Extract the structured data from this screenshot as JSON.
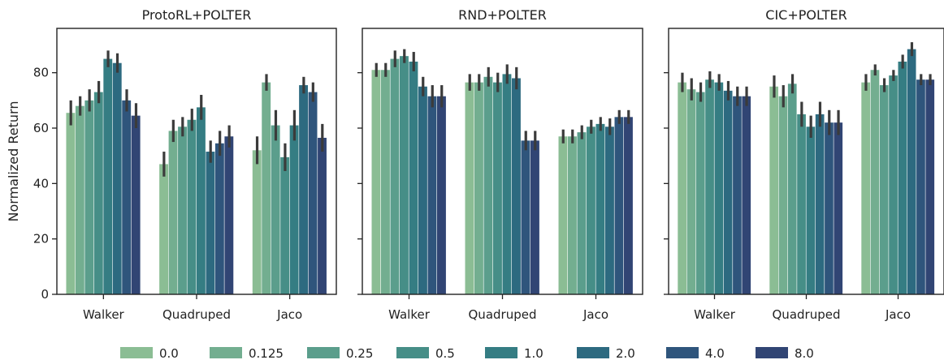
{
  "chart_data": [
    {
      "type": "bar",
      "title": "ProtoRL+POLTER",
      "ylabel": "Normalized Return",
      "xlabel": "",
      "ylim": [
        0,
        96
      ],
      "yticks": [
        0,
        20,
        40,
        60,
        80
      ],
      "grid": false,
      "categories": [
        "Walker",
        "Quadruped",
        "Jaco"
      ],
      "series": [
        {
          "name": "0.0",
          "values": [
            65.5,
            47,
            52
          ],
          "errors": [
            4.5,
            4.5,
            5
          ]
        },
        {
          "name": "0.125",
          "values": [
            68,
            59,
            76.5
          ],
          "errors": [
            3.5,
            4,
            3
          ]
        },
        {
          "name": "0.25",
          "values": [
            70,
            60.5,
            61
          ],
          "errors": [
            4,
            3.5,
            5.5
          ]
        },
        {
          "name": "0.5",
          "values": [
            73,
            63,
            49.5
          ],
          "errors": [
            4,
            4,
            5
          ]
        },
        {
          "name": "1.0",
          "values": [
            85,
            67.5,
            61
          ],
          "errors": [
            3,
            4.5,
            5.5
          ]
        },
        {
          "name": "2.0",
          "values": [
            83.5,
            51.5,
            75.5
          ],
          "errors": [
            3.5,
            4,
            3
          ]
        },
        {
          "name": "4.0",
          "values": [
            70,
            54.5,
            73
          ],
          "errors": [
            4,
            4.5,
            3.5
          ]
        },
        {
          "name": "8.0",
          "values": [
            64.5,
            57,
            56.5
          ],
          "errors": [
            4.5,
            4,
            5
          ]
        }
      ]
    },
    {
      "type": "bar",
      "title": "RND+POLTER",
      "ylabel": "",
      "xlabel": "",
      "ylim": [
        0,
        96
      ],
      "yticks": [
        0,
        20,
        40,
        60,
        80
      ],
      "grid": false,
      "categories": [
        "Walker",
        "Quadruped",
        "Jaco"
      ],
      "series": [
        {
          "name": "0.0",
          "values": [
            81,
            76.5,
            57
          ],
          "errors": [
            2.5,
            3,
            2.5
          ]
        },
        {
          "name": "0.125",
          "values": [
            81,
            76.5,
            57
          ],
          "errors": [
            2.5,
            3,
            2.5
          ]
        },
        {
          "name": "0.25",
          "values": [
            85,
            78.5,
            58.5
          ],
          "errors": [
            3,
            3.5,
            2.5
          ]
        },
        {
          "name": "0.5",
          "values": [
            86,
            76.5,
            60.5
          ],
          "errors": [
            2.5,
            3.5,
            2.5
          ]
        },
        {
          "name": "1.0",
          "values": [
            84,
            79.5,
            61.5
          ],
          "errors": [
            3.5,
            3.5,
            2.5
          ]
        },
        {
          "name": "2.0",
          "values": [
            75,
            78,
            60.5
          ],
          "errors": [
            3.5,
            4,
            3
          ]
        },
        {
          "name": "4.0",
          "values": [
            71.5,
            55.5,
            64
          ],
          "errors": [
            4,
            3.5,
            2.5
          ]
        },
        {
          "name": "8.0",
          "values": [
            71.5,
            55.5,
            64
          ],
          "errors": [
            4,
            3.5,
            2.5
          ]
        }
      ]
    },
    {
      "type": "bar",
      "title": "CIC+POLTER",
      "ylabel": "",
      "xlabel": "",
      "ylim": [
        0,
        96
      ],
      "yticks": [
        0,
        20,
        40,
        60,
        80
      ],
      "grid": false,
      "categories": [
        "Walker",
        "Quadruped",
        "Jaco"
      ],
      "series": [
        {
          "name": "0.0",
          "values": [
            76.5,
            75,
            76.5
          ],
          "errors": [
            3.5,
            4,
            3
          ]
        },
        {
          "name": "0.125",
          "values": [
            74,
            71.5,
            81
          ],
          "errors": [
            4,
            4,
            2
          ]
        },
        {
          "name": "0.25",
          "values": [
            73,
            76,
            75.5
          ],
          "errors": [
            3.5,
            3.5,
            2.5
          ]
        },
        {
          "name": "0.5",
          "values": [
            77.5,
            65,
            79
          ],
          "errors": [
            3,
            4.5,
            2
          ]
        },
        {
          "name": "1.0",
          "values": [
            76.5,
            60.5,
            84
          ],
          "errors": [
            3,
            4,
            2.5
          ]
        },
        {
          "name": "2.0",
          "values": [
            73.5,
            65,
            88.5
          ],
          "errors": [
            3.5,
            4.5,
            2.5
          ]
        },
        {
          "name": "4.0",
          "values": [
            71.5,
            62,
            77.5
          ],
          "errors": [
            3.5,
            4.5,
            2
          ]
        },
        {
          "name": "8.0",
          "values": [
            71.5,
            62,
            77.5
          ],
          "errors": [
            3.5,
            4.5,
            2
          ]
        }
      ]
    }
  ],
  "legend": {
    "placement": "bottom",
    "items": [
      {
        "label": "0.0",
        "color": "#8bbd94"
      },
      {
        "label": "0.125",
        "color": "#73ae90"
      },
      {
        "label": "0.25",
        "color": "#5b9e8c"
      },
      {
        "label": "0.5",
        "color": "#468e87"
      },
      {
        "label": "1.0",
        "color": "#357d83"
      },
      {
        "label": "2.0",
        "color": "#2d6a80"
      },
      {
        "label": "4.0",
        "color": "#2f557c"
      },
      {
        "label": "8.0",
        "color": "#314574"
      }
    ]
  }
}
